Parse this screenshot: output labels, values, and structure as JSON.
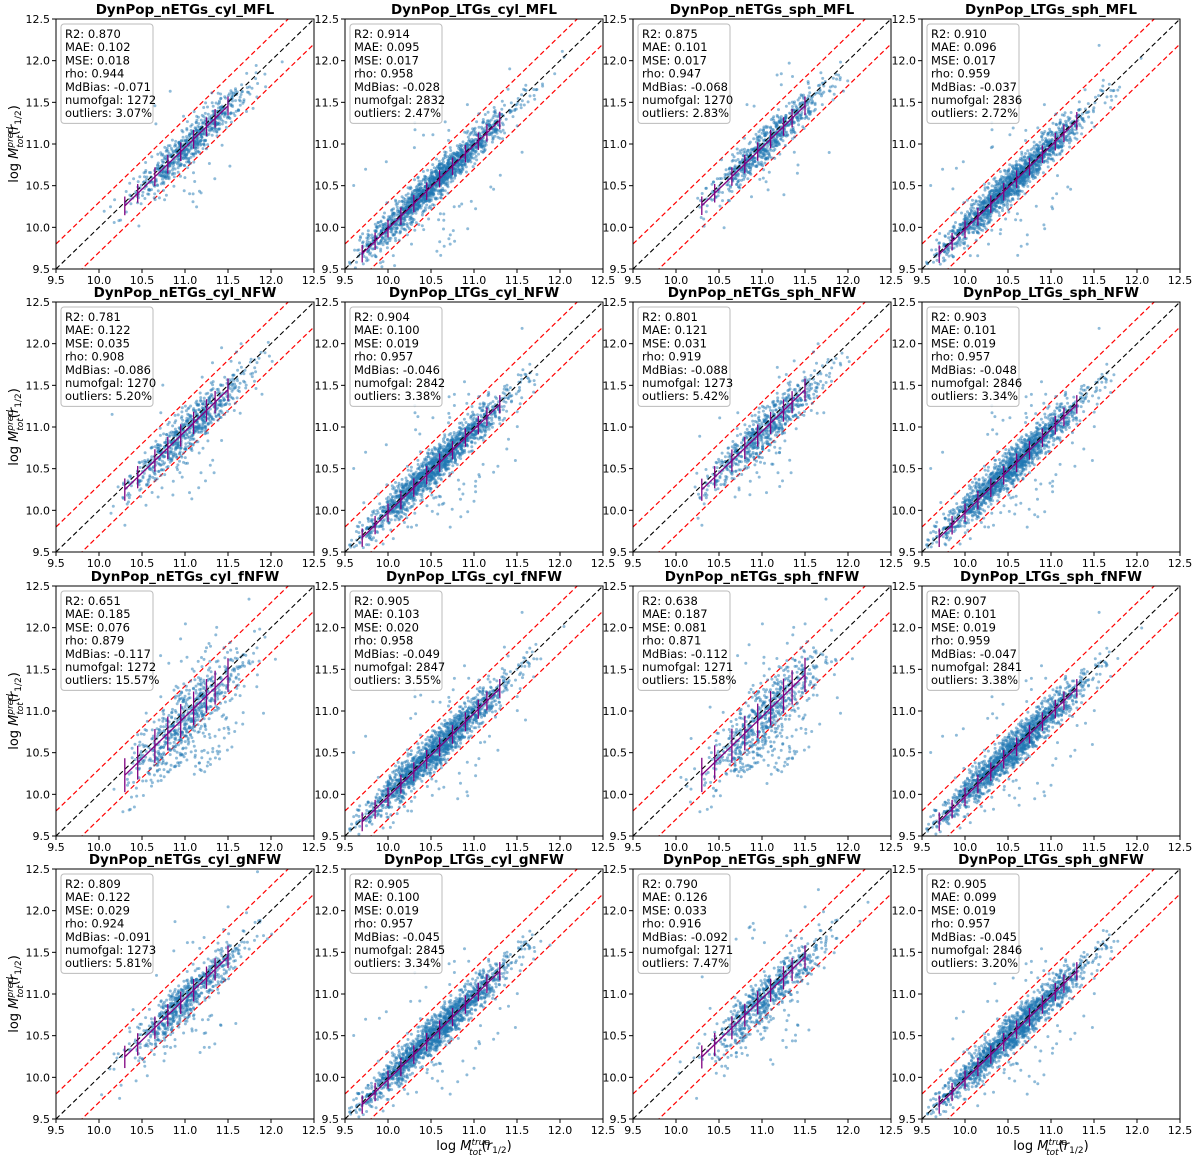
{
  "chart_data": {
    "type": "scatter",
    "layout": "4x4 grid",
    "xlabel": "log M_tot^true(r_1/2)",
    "ylabel": "log M_tot^pred(r_1/2)",
    "xlim": [
      9.5,
      12.5
    ],
    "ylim": [
      9.5,
      12.5
    ],
    "ticks": [
      "9.5",
      "10.0",
      "10.5",
      "11.0",
      "11.5",
      "12.0",
      "12.5"
    ],
    "point_color": "#1f77b4",
    "binned_median_color": "#800080",
    "identity_line_color": "#000000",
    "scatter_band_color": "#ff0000",
    "stat_keys": [
      "R2",
      "MAE",
      "MSE",
      "rho",
      "MdBias",
      "numofgal",
      "outliers"
    ],
    "panels": [
      {
        "title": "DynPop_nETGs_cyl_MFL",
        "stats": {
          "R2": "0.870",
          "MAE": "0.102",
          "MSE": "0.018",
          "rho": "0.944",
          "MdBias": "-0.071",
          "numofgal": "1272",
          "outliers": "3.07%"
        }
      },
      {
        "title": "DynPop_LTGs_cyl_MFL",
        "stats": {
          "R2": "0.914",
          "MAE": "0.095",
          "MSE": "0.017",
          "rho": "0.958",
          "MdBias": "-0.028",
          "numofgal": "2832",
          "outliers": "2.47%"
        }
      },
      {
        "title": "DynPop_nETGs_sph_MFL",
        "stats": {
          "R2": "0.875",
          "MAE": "0.101",
          "MSE": "0.017",
          "rho": "0.947",
          "MdBias": "-0.068",
          "numofgal": "1270",
          "outliers": "2.83%"
        }
      },
      {
        "title": "DynPop_LTGs_sph_MFL",
        "stats": {
          "R2": "0.910",
          "MAE": "0.096",
          "MSE": "0.017",
          "rho": "0.959",
          "MdBias": "-0.037",
          "numofgal": "2836",
          "outliers": "2.72%"
        }
      },
      {
        "title": "DynPop_nETGs_cyl_NFW",
        "stats": {
          "R2": "0.781",
          "MAE": "0.122",
          "MSE": "0.035",
          "rho": "0.908",
          "MdBias": "-0.086",
          "numofgal": "1270",
          "outliers": "5.20%"
        }
      },
      {
        "title": "DynPop_LTGs_cyl_NFW",
        "stats": {
          "R2": "0.904",
          "MAE": "0.100",
          "MSE": "0.019",
          "rho": "0.957",
          "MdBias": "-0.046",
          "numofgal": "2842",
          "outliers": "3.38%"
        }
      },
      {
        "title": "DynPop_nETGs_sph_NFW",
        "stats": {
          "R2": "0.801",
          "MAE": "0.121",
          "MSE": "0.031",
          "rho": "0.919",
          "MdBias": "-0.088",
          "numofgal": "1273",
          "outliers": "5.42%"
        }
      },
      {
        "title": "DynPop_LTGs_sph_NFW",
        "stats": {
          "R2": "0.903",
          "MAE": "0.101",
          "MSE": "0.019",
          "rho": "0.957",
          "MdBias": "-0.048",
          "numofgal": "2846",
          "outliers": "3.34%"
        }
      },
      {
        "title": "DynPop_nETGs_cyl_fNFW",
        "stats": {
          "R2": "0.651",
          "MAE": "0.185",
          "MSE": "0.076",
          "rho": "0.879",
          "MdBias": "-0.117",
          "numofgal": "1272",
          "outliers": "15.57%"
        }
      },
      {
        "title": "DynPop_LTGs_cyl_fNFW",
        "stats": {
          "R2": "0.905",
          "MAE": "0.103",
          "MSE": "0.020",
          "rho": "0.958",
          "MdBias": "-0.049",
          "numofgal": "2847",
          "outliers": "3.55%"
        }
      },
      {
        "title": "DynPop_nETGs_sph_fNFW",
        "stats": {
          "R2": "0.638",
          "MAE": "0.187",
          "MSE": "0.081",
          "rho": "0.871",
          "MdBias": "-0.112",
          "numofgal": "1271",
          "outliers": "15.58%"
        }
      },
      {
        "title": "DynPop_LTGs_sph_fNFW",
        "stats": {
          "R2": "0.907",
          "MAE": "0.101",
          "MSE": "0.019",
          "rho": "0.959",
          "MdBias": "-0.047",
          "numofgal": "2841",
          "outliers": "3.38%"
        }
      },
      {
        "title": "DynPop_nETGs_cyl_gNFW",
        "stats": {
          "R2": "0.809",
          "MAE": "0.122",
          "MSE": "0.029",
          "rho": "0.924",
          "MdBias": "-0.091",
          "numofgal": "1273",
          "outliers": "5.81%"
        }
      },
      {
        "title": "DynPop_LTGs_cyl_gNFW",
        "stats": {
          "R2": "0.905",
          "MAE": "0.100",
          "MSE": "0.019",
          "rho": "0.957",
          "MdBias": "-0.045",
          "numofgal": "2845",
          "outliers": "3.34%"
        }
      },
      {
        "title": "DynPop_nETGs_sph_gNFW",
        "stats": {
          "R2": "0.790",
          "MAE": "0.126",
          "MSE": "0.033",
          "rho": "0.916",
          "MdBias": "-0.092",
          "numofgal": "1271",
          "outliers": "7.47%"
        }
      },
      {
        "title": "DynPop_LTGs_sph_gNFW",
        "stats": {
          "R2": "0.905",
          "MAE": "0.099",
          "MSE": "0.019",
          "rho": "0.957",
          "MdBias": "-0.045",
          "numofgal": "2846",
          "outliers": "3.20%"
        }
      }
    ]
  }
}
